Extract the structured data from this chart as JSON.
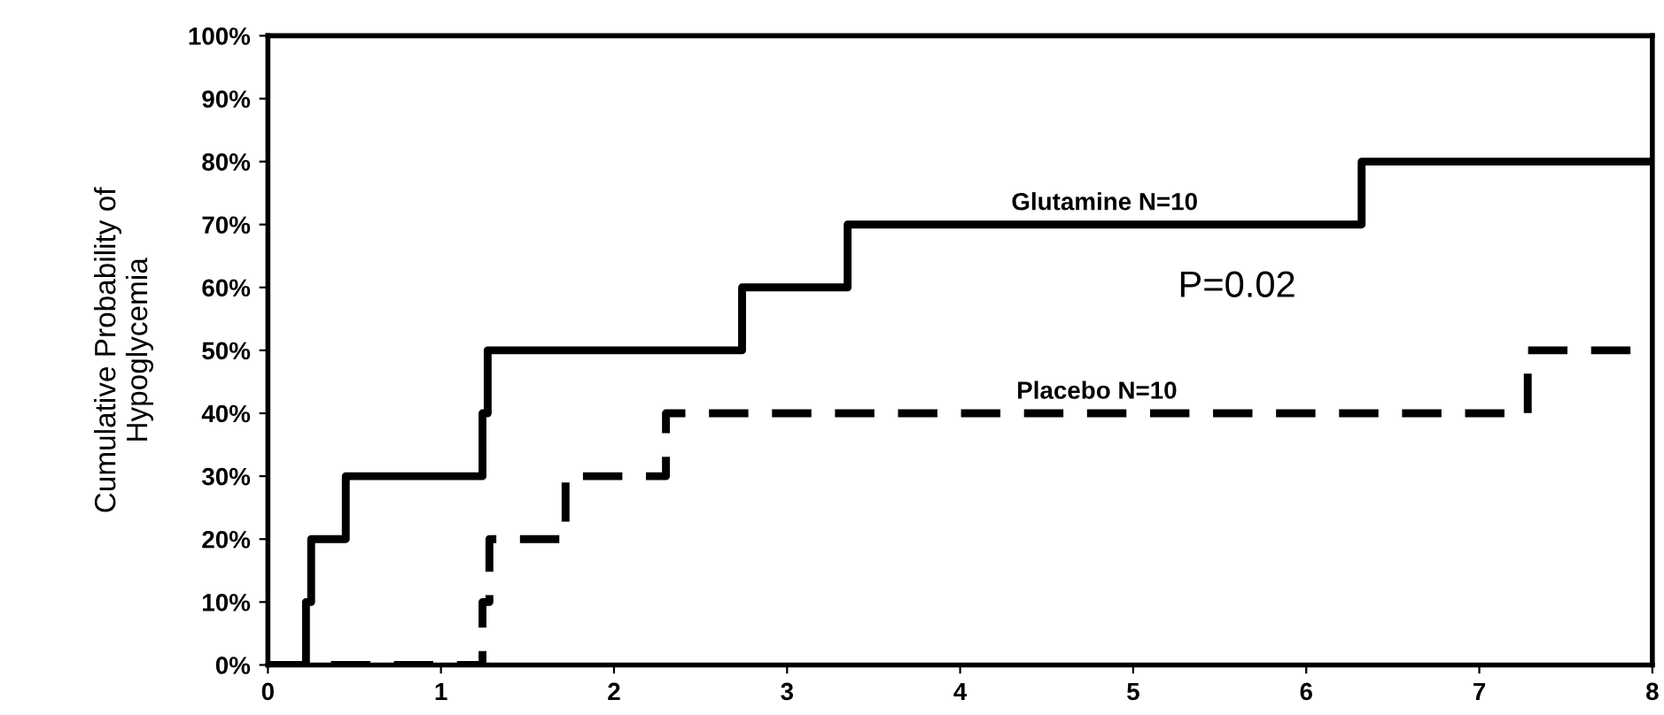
{
  "chart_data": {
    "type": "step",
    "ylabel": "Cumulative Probability of\nHypoglycemia",
    "xlim": [
      0,
      8
    ],
    "xticks": [
      0,
      1,
      2,
      3,
      4,
      5,
      6,
      7,
      8
    ],
    "ylim": [
      0,
      100
    ],
    "yticks": [
      {
        "value": 0,
        "label": "0%"
      },
      {
        "value": 10,
        "label": "10%"
      },
      {
        "value": 20,
        "label": "20%"
      },
      {
        "value": 30,
        "label": "30%"
      },
      {
        "value": 40,
        "label": "40%"
      },
      {
        "value": 50,
        "label": "50%"
      },
      {
        "value": 60,
        "label": "60%"
      },
      {
        "value": 70,
        "label": "70%"
      },
      {
        "value": 80,
        "label": "80%"
      },
      {
        "value": 90,
        "label": "90%"
      },
      {
        "value": 100,
        "label": "100%"
      }
    ],
    "grid": false,
    "legend": false,
    "series": [
      {
        "name": "Glutamine N=10",
        "color": "#000000",
        "line_style": "solid",
        "x": [
          0,
          0.22,
          0.25,
          0.45,
          1.24,
          1.27,
          2.74,
          3.35,
          6.32,
          8
        ],
        "values": [
          0,
          10,
          20,
          30,
          40,
          50,
          60,
          70,
          80,
          80
        ]
      },
      {
        "name": "Placebo N=10",
        "color": "#000000",
        "line_style": "dashed",
        "x": [
          0,
          1.24,
          1.28,
          1.72,
          2.3,
          7.28,
          8
        ],
        "values": [
          0,
          10,
          20,
          30,
          40,
          50,
          50
        ]
      }
    ],
    "annotations": [
      "P=0.02"
    ]
  }
}
